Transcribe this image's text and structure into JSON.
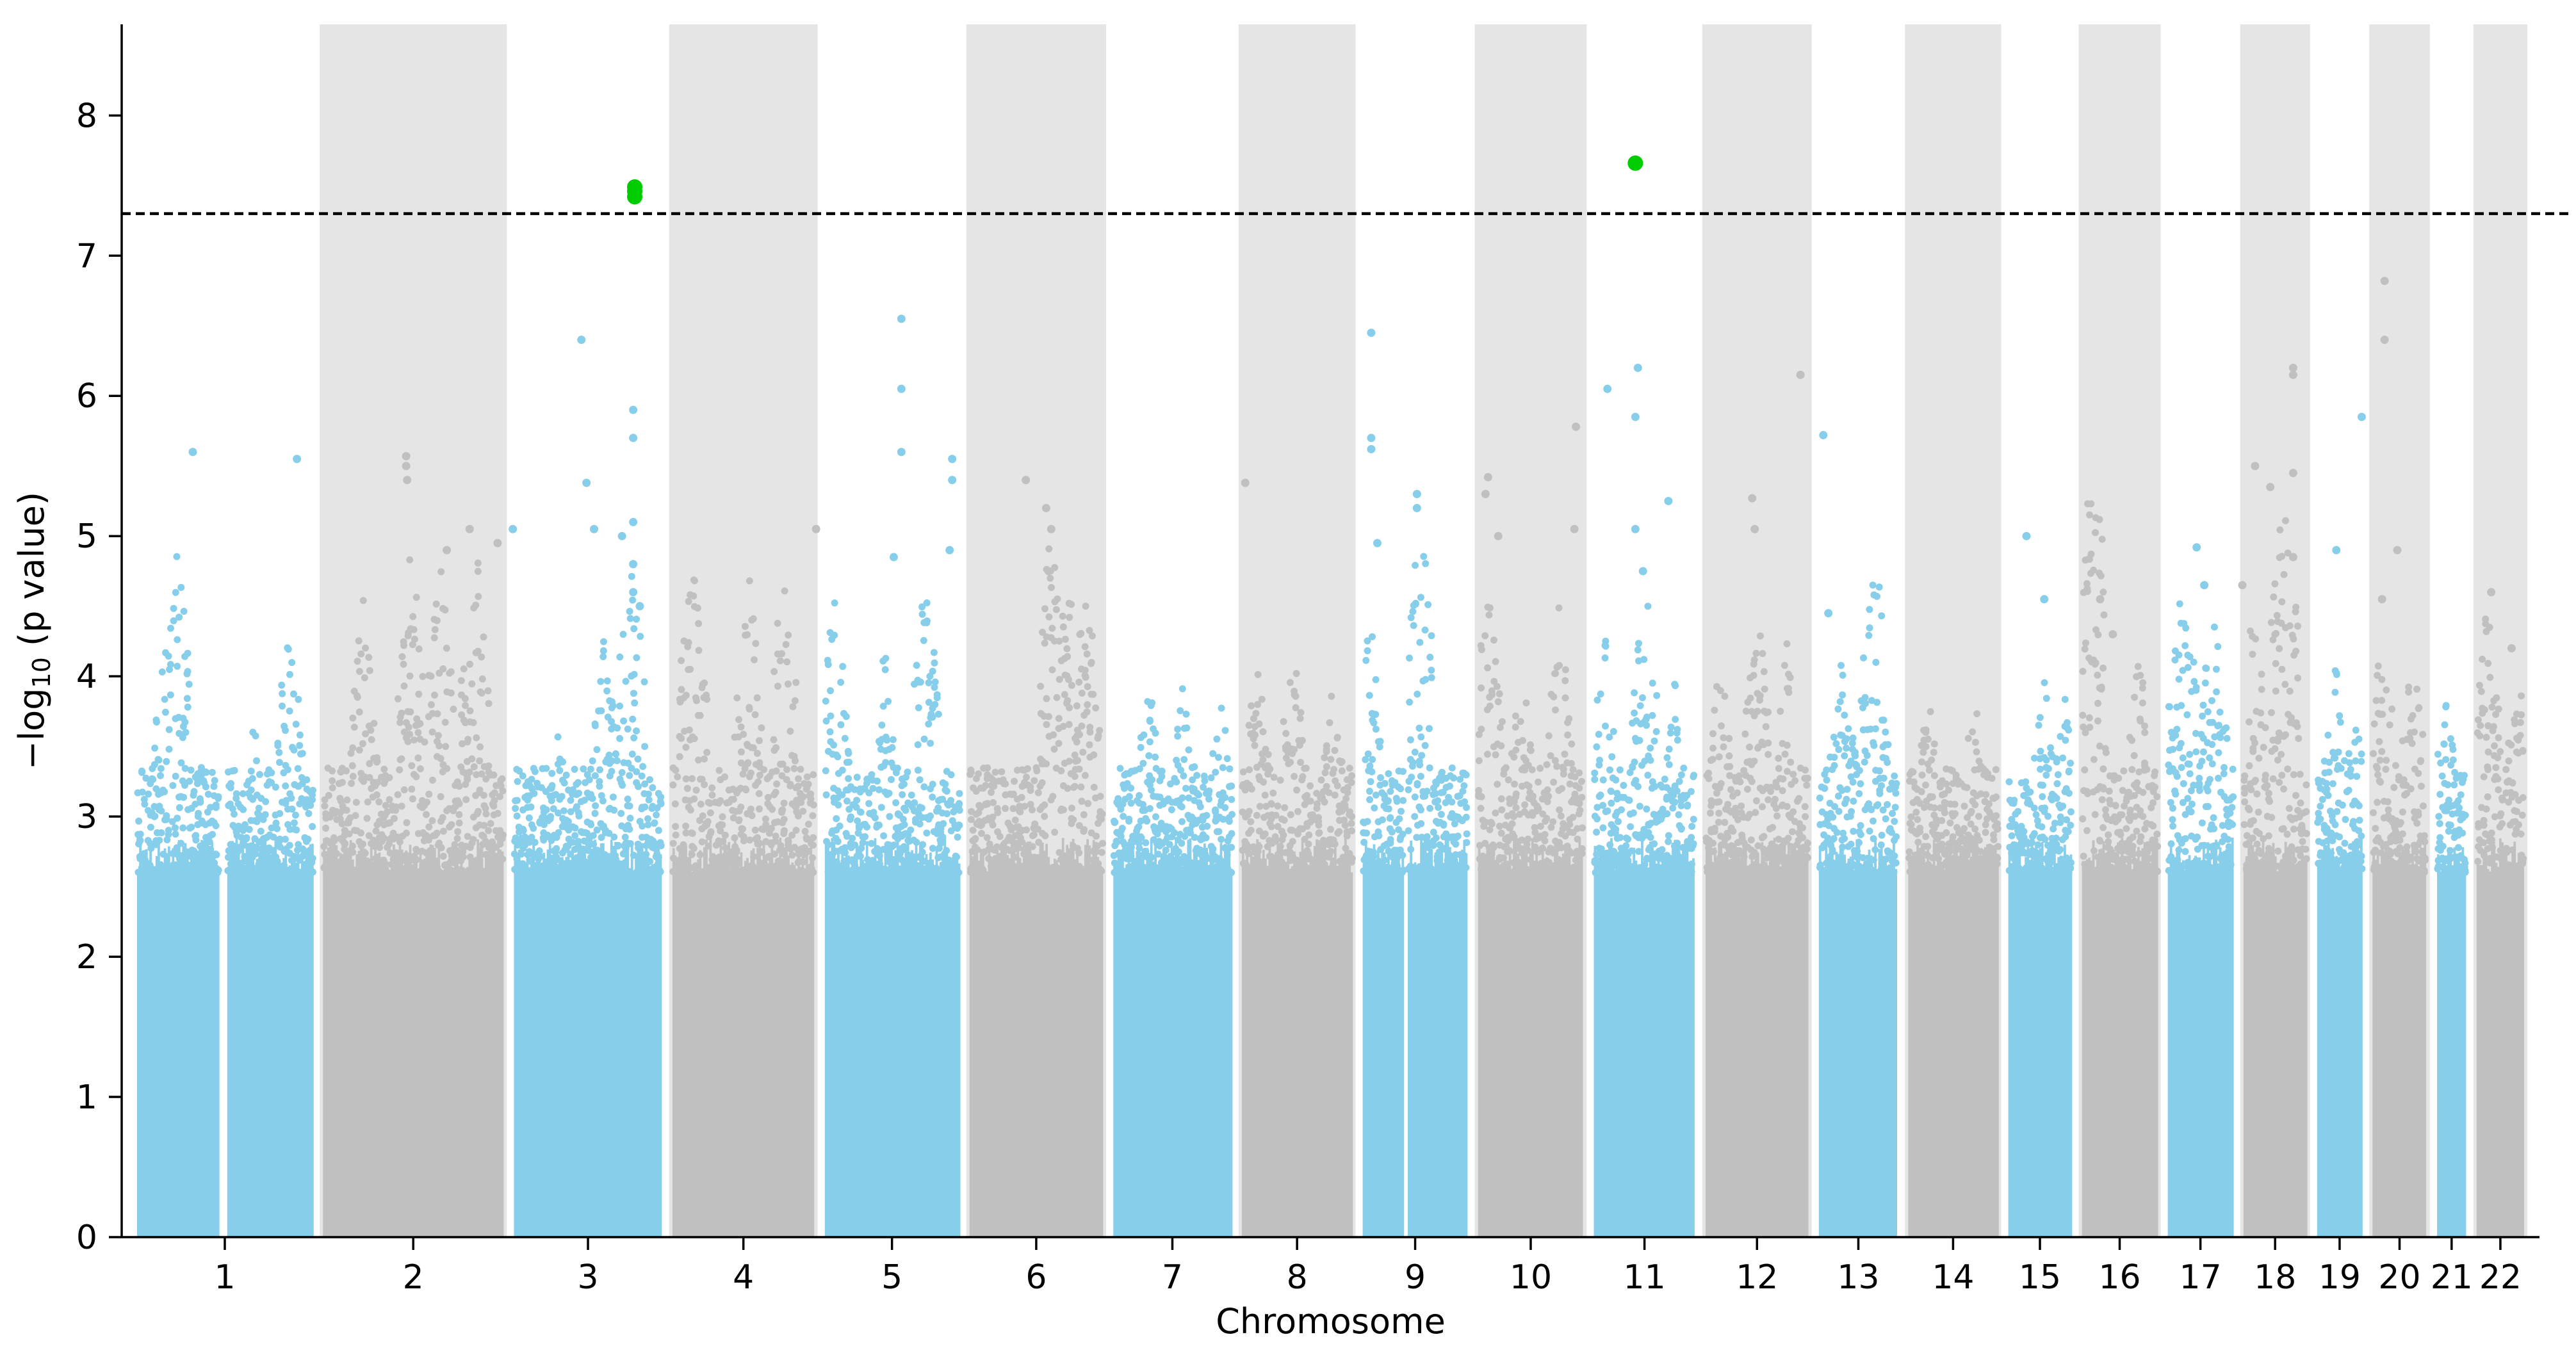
{
  "chart_data": {
    "type": "scatter",
    "title": "",
    "xlabel": "Chromosome",
    "ylabel_prefix": "−log",
    "ylabel_subscript": "10",
    "ylabel_suffix": " (p value)",
    "ylim": [
      0,
      8.65
    ],
    "yticks": [
      0,
      1,
      2,
      3,
      4,
      5,
      6,
      7,
      8
    ],
    "significance_threshold": 7.3,
    "colors": {
      "odd": "#87ceeb",
      "even": "#c0c0c0",
      "shade": "#e5e5e5",
      "significant": "#00cc00",
      "threshold": "#000000"
    },
    "chromosomes": [
      {
        "label": "1",
        "start": 0.0,
        "end": 36.6,
        "shaded": false,
        "gaps": [
          [
            17.0,
            19.0
          ]
        ]
      },
      {
        "label": "2",
        "start": 36.6,
        "end": 74.2,
        "shaded": true,
        "gaps": []
      },
      {
        "label": "3",
        "start": 74.2,
        "end": 105.4,
        "shaded": false,
        "gaps": []
      },
      {
        "label": "4",
        "start": 105.4,
        "end": 135.4,
        "shaded": true,
        "gaps": []
      },
      {
        "label": "5",
        "start": 135.4,
        "end": 163.9,
        "shaded": false,
        "gaps": []
      },
      {
        "label": "6",
        "start": 163.9,
        "end": 192.2,
        "shaded": true,
        "gaps": []
      },
      {
        "label": "7",
        "start": 192.2,
        "end": 217.5,
        "shaded": false,
        "gaps": []
      },
      {
        "label": "8",
        "start": 217.5,
        "end": 241.3,
        "shaded": true,
        "gaps": []
      },
      {
        "label": "9",
        "start": 241.3,
        "end": 264.0,
        "shaded": false,
        "gaps": [
          [
            9.3,
            10.1
          ]
        ]
      },
      {
        "label": "10",
        "start": 264.0,
        "end": 286.8,
        "shaded": true,
        "gaps": []
      },
      {
        "label": "11",
        "start": 286.8,
        "end": 308.8,
        "shaded": false,
        "gaps": []
      },
      {
        "label": "12",
        "start": 308.8,
        "end": 331.1,
        "shaded": true,
        "gaps": []
      },
      {
        "label": "13",
        "start": 331.1,
        "end": 348.7,
        "shaded": false,
        "gaps": []
      },
      {
        "label": "14",
        "start": 348.7,
        "end": 368.4,
        "shaded": true,
        "gaps": []
      },
      {
        "label": "15",
        "start": 368.4,
        "end": 382.9,
        "shaded": false,
        "gaps": []
      },
      {
        "label": "16",
        "start": 382.9,
        "end": 399.8,
        "shaded": true,
        "gaps": []
      },
      {
        "label": "17",
        "start": 399.8,
        "end": 414.7,
        "shaded": false,
        "gaps": []
      },
      {
        "label": "18",
        "start": 414.7,
        "end": 429.2,
        "shaded": true,
        "gaps": []
      },
      {
        "label": "19",
        "start": 429.2,
        "end": 440.1,
        "shaded": false,
        "gaps": []
      },
      {
        "label": "20",
        "start": 440.1,
        "end": 452.8,
        "shaded": true,
        "gaps": []
      },
      {
        "label": "21",
        "start": 452.8,
        "end": 460.6,
        "shaded": false,
        "gaps": []
      },
      {
        "label": "22",
        "start": 460.6,
        "end": 472.0,
        "shaded": true,
        "gaps": []
      }
    ],
    "xlim": [
      -2.0,
      474.0
    ],
    "peaks": [
      {
        "chr": 0,
        "pos": 9.0,
        "y": 4.9
      },
      {
        "chr": 0,
        "pos": 7.0,
        "y": 4.6
      },
      {
        "chr": 0,
        "pos": 31.0,
        "y": 4.5
      },
      {
        "chr": 0,
        "pos": 24.0,
        "y": 3.7
      },
      {
        "chr": 1,
        "pos": 18.5,
        "y": 5.0
      },
      {
        "chr": 1,
        "pos": 31.0,
        "y": 5.0
      },
      {
        "chr": 1,
        "pos": 9.0,
        "y": 4.6
      },
      {
        "chr": 1,
        "pos": 24.0,
        "y": 4.9
      },
      {
        "chr": 2,
        "pos": 24.0,
        "y": 5.0
      },
      {
        "chr": 2,
        "pos": 19.0,
        "y": 4.4
      },
      {
        "chr": 2,
        "pos": 10.0,
        "y": 3.9
      },
      {
        "chr": 3,
        "pos": 5.0,
        "y": 4.9
      },
      {
        "chr": 3,
        "pos": 16.0,
        "y": 4.8
      },
      {
        "chr": 3,
        "pos": 23.0,
        "y": 4.9
      },
      {
        "chr": 4,
        "pos": 3.0,
        "y": 4.7
      },
      {
        "chr": 4,
        "pos": 13.0,
        "y": 4.3
      },
      {
        "chr": 4,
        "pos": 21.0,
        "y": 4.8
      },
      {
        "chr": 5,
        "pos": 17.0,
        "y": 5.1
      },
      {
        "chr": 5,
        "pos": 20.0,
        "y": 4.9
      },
      {
        "chr": 5,
        "pos": 24.0,
        "y": 4.8
      },
      {
        "chr": 6,
        "pos": 8.0,
        "y": 4.1
      },
      {
        "chr": 6,
        "pos": 15.0,
        "y": 4.1
      },
      {
        "chr": 6,
        "pos": 22.0,
        "y": 4.0
      },
      {
        "chr": 7,
        "pos": 4.0,
        "y": 4.2
      },
      {
        "chr": 7,
        "pos": 11.0,
        "y": 4.3
      },
      {
        "chr": 7,
        "pos": 19.0,
        "y": 4.0
      },
      {
        "chr": 8,
        "pos": 2.0,
        "y": 4.6
      },
      {
        "chr": 8,
        "pos": 12.0,
        "y": 5.3
      },
      {
        "chr": 9,
        "pos": 3.0,
        "y": 4.7
      },
      {
        "chr": 9,
        "pos": 10.0,
        "y": 4.3
      },
      {
        "chr": 9,
        "pos": 17.0,
        "y": 4.5
      },
      {
        "chr": 10,
        "pos": 3.0,
        "y": 4.4
      },
      {
        "chr": 10,
        "pos": 11.0,
        "y": 4.8
      },
      {
        "chr": 10,
        "pos": 17.0,
        "y": 4.1
      },
      {
        "chr": 11,
        "pos": 4.0,
        "y": 4.2
      },
      {
        "chr": 11,
        "pos": 11.0,
        "y": 4.6
      },
      {
        "chr": 11,
        "pos": 17.0,
        "y": 4.3
      },
      {
        "chr": 12,
        "pos": 12.0,
        "y": 5.0
      },
      {
        "chr": 12,
        "pos": 6.0,
        "y": 4.4
      },
      {
        "chr": 13,
        "pos": 5.0,
        "y": 4.0
      },
      {
        "chr": 13,
        "pos": 14.0,
        "y": 4.0
      },
      {
        "chr": 14,
        "pos": 8.0,
        "y": 4.1
      },
      {
        "chr": 14,
        "pos": 12.0,
        "y": 4.0
      },
      {
        "chr": 15,
        "pos": 3.0,
        "y": 5.7
      },
      {
        "chr": 15,
        "pos": 12.0,
        "y": 4.3
      },
      {
        "chr": 16,
        "pos": 4.0,
        "y": 4.9
      },
      {
        "chr": 16,
        "pos": 10.0,
        "y": 4.6
      },
      {
        "chr": 17,
        "pos": 3.0,
        "y": 4.6
      },
      {
        "chr": 17,
        "pos": 9.0,
        "y": 5.4
      },
      {
        "chr": 18,
        "pos": 5.0,
        "y": 4.3
      },
      {
        "chr": 18,
        "pos": 9.0,
        "y": 3.8
      },
      {
        "chr": 19,
        "pos": 3.0,
        "y": 4.5
      },
      {
        "chr": 19,
        "pos": 9.0,
        "y": 4.3
      },
      {
        "chr": 20,
        "pos": 3.0,
        "y": 4.1
      },
      {
        "chr": 21,
        "pos": 3.0,
        "y": 4.6
      },
      {
        "chr": 21,
        "pos": 9.0,
        "y": 4.2
      }
    ],
    "outliers": [
      {
        "x": 12.0,
        "y": 5.6
      },
      {
        "x": 32.5,
        "y": 5.55
      },
      {
        "x": 54.0,
        "y": 5.57
      },
      {
        "x": 54.0,
        "y": 5.5
      },
      {
        "x": 54.2,
        "y": 5.4
      },
      {
        "x": 66.5,
        "y": 5.05
      },
      {
        "x": 72.0,
        "y": 4.95
      },
      {
        "x": 62.0,
        "y": 4.9
      },
      {
        "x": 75.0,
        "y": 5.05
      },
      {
        "x": 88.5,
        "y": 6.4
      },
      {
        "x": 89.5,
        "y": 5.38
      },
      {
        "x": 91.0,
        "y": 5.05
      },
      {
        "x": 96.5,
        "y": 5.0
      },
      {
        "x": 98.7,
        "y": 5.9
      },
      {
        "x": 98.7,
        "y": 5.7
      },
      {
        "x": 98.7,
        "y": 5.1
      },
      {
        "x": 98.7,
        "y": 4.8
      },
      {
        "x": 98.7,
        "y": 4.6
      },
      {
        "x": 100.0,
        "y": 4.5
      },
      {
        "x": 134.7,
        "y": 5.05
      },
      {
        "x": 151.5,
        "y": 6.55
      },
      {
        "x": 151.5,
        "y": 6.05
      },
      {
        "x": 151.5,
        "y": 5.6
      },
      {
        "x": 150.0,
        "y": 4.85
      },
      {
        "x": 161.5,
        "y": 5.55
      },
      {
        "x": 161.5,
        "y": 5.4
      },
      {
        "x": 161.0,
        "y": 4.9
      },
      {
        "x": 176.0,
        "y": 5.4
      },
      {
        "x": 180.0,
        "y": 5.2
      },
      {
        "x": 181.0,
        "y": 5.05
      },
      {
        "x": 219.2,
        "y": 5.38
      },
      {
        "x": 244.0,
        "y": 6.45
      },
      {
        "x": 244.0,
        "y": 5.7
      },
      {
        "x": 244.0,
        "y": 5.62
      },
      {
        "x": 245.2,
        "y": 4.95
      },
      {
        "x": 253.0,
        "y": 5.3
      },
      {
        "x": 253.0,
        "y": 5.2
      },
      {
        "x": 267.0,
        "y": 5.42
      },
      {
        "x": 266.5,
        "y": 5.3
      },
      {
        "x": 269.0,
        "y": 5.0
      },
      {
        "x": 284.3,
        "y": 5.78
      },
      {
        "x": 284.0,
        "y": 5.05
      },
      {
        "x": 290.5,
        "y": 6.05
      },
      {
        "x": 296.5,
        "y": 6.2
      },
      {
        "x": 296.0,
        "y": 5.85
      },
      {
        "x": 296.0,
        "y": 5.05
      },
      {
        "x": 297.5,
        "y": 4.75
      },
      {
        "x": 302.5,
        "y": 5.25
      },
      {
        "x": 319.0,
        "y": 5.27
      },
      {
        "x": 319.5,
        "y": 5.05
      },
      {
        "x": 328.5,
        "y": 6.15
      },
      {
        "x": 333.0,
        "y": 5.72
      },
      {
        "x": 334.0,
        "y": 4.45
      },
      {
        "x": 373.0,
        "y": 5.0
      },
      {
        "x": 376.5,
        "y": 4.55
      },
      {
        "x": 387.5,
        "y": 4.55
      },
      {
        "x": 390.0,
        "y": 4.3
      },
      {
        "x": 406.5,
        "y": 4.92
      },
      {
        "x": 408.0,
        "y": 4.65
      },
      {
        "x": 415.5,
        "y": 4.65
      },
      {
        "x": 418.0,
        "y": 5.5
      },
      {
        "x": 421.0,
        "y": 5.35
      },
      {
        "x": 425.5,
        "y": 6.2
      },
      {
        "x": 425.5,
        "y": 6.15
      },
      {
        "x": 425.5,
        "y": 5.45
      },
      {
        "x": 425.5,
        "y": 4.85
      },
      {
        "x": 434.0,
        "y": 4.9
      },
      {
        "x": 439.0,
        "y": 5.85
      },
      {
        "x": 443.5,
        "y": 6.82
      },
      {
        "x": 443.5,
        "y": 6.4
      },
      {
        "x": 446.0,
        "y": 4.9
      },
      {
        "x": 443.0,
        "y": 4.55
      },
      {
        "x": 464.5,
        "y": 4.6
      },
      {
        "x": 468.5,
        "y": 4.2
      }
    ],
    "significant_points": [
      {
        "x": 99.0,
        "y": 7.49
      },
      {
        "x": 99.0,
        "y": 7.46
      },
      {
        "x": 99.0,
        "y": 7.42
      },
      {
        "x": 296.0,
        "y": 7.66
      }
    ]
  }
}
